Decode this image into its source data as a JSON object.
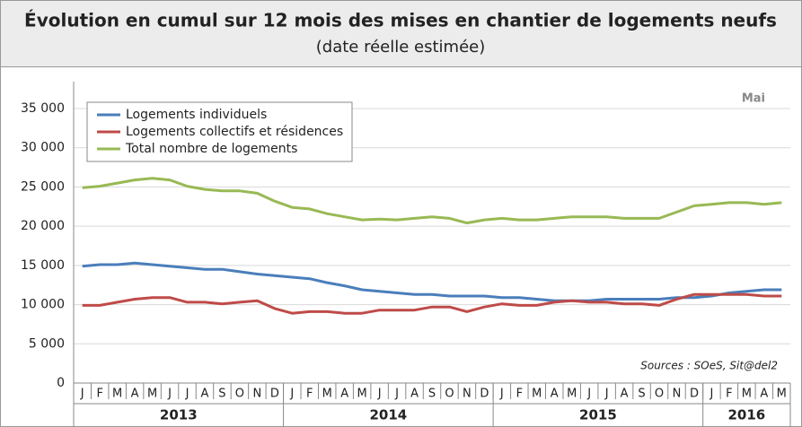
{
  "chart_data": {
    "type": "line",
    "title": "Évolution en cumul sur 12 mois des mises en chantier de logements neufs",
    "subtitle": "(date réelle estimée)",
    "annotations": [
      "Mai",
      "Sources : SOeS, Sit@del2"
    ],
    "years": [
      "2013",
      "2014",
      "2015",
      "2016"
    ],
    "categories": [
      "J",
      "F",
      "M",
      "A",
      "M",
      "J",
      "J",
      "A",
      "S",
      "O",
      "N",
      "D",
      "J",
      "F",
      "M",
      "A",
      "M",
      "J",
      "J",
      "A",
      "S",
      "O",
      "N",
      "D",
      "J",
      "F",
      "M",
      "A",
      "M",
      "J",
      "J",
      "A",
      "S",
      "O",
      "N",
      "D",
      "J",
      "F",
      "M",
      "A",
      "M"
    ],
    "series": [
      {
        "name": "Logements individuels",
        "color": "#4a7ebb",
        "values": [
          14900,
          15100,
          15100,
          15300,
          15100,
          14900,
          14700,
          14500,
          14500,
          14200,
          13900,
          13700,
          13500,
          13300,
          12800,
          12400,
          11900,
          11700,
          11500,
          11300,
          11300,
          11100,
          11100,
          11100,
          10900,
          10900,
          10700,
          10500,
          10500,
          10500,
          10700,
          10700,
          10700,
          10700,
          10900,
          10900,
          11100,
          11500,
          11700,
          11900,
          11900
        ]
      },
      {
        "name": "Logements collectifs et résidences",
        "color": "#be4b48",
        "values": [
          9900,
          9900,
          10300,
          10700,
          10900,
          10900,
          10300,
          10300,
          10100,
          10300,
          10500,
          9500,
          8900,
          9100,
          9100,
          8900,
          8900,
          9300,
          9300,
          9300,
          9700,
          9700,
          9100,
          9700,
          10100,
          9900,
          9900,
          10300,
          10500,
          10300,
          10300,
          10100,
          10100,
          9900,
          10700,
          11300,
          11300,
          11300,
          11300,
          11100,
          11100
        ]
      },
      {
        "name": "Total nombre de logements",
        "color": "#98b954",
        "values": [
          24900,
          25100,
          25500,
          25900,
          26100,
          25900,
          25100,
          24700,
          24500,
          24500,
          24200,
          23200,
          22400,
          22200,
          21600,
          21200,
          20800,
          20900,
          20800,
          21000,
          21200,
          21000,
          20400,
          20800,
          21000,
          20800,
          20800,
          21000,
          21200,
          21200,
          21200,
          21000,
          21000,
          21000,
          21800,
          22600,
          22800,
          23000,
          23000,
          22800,
          23000
        ]
      }
    ],
    "ylim": [
      0,
      35000
    ],
    "yticks": [
      0,
      {
        "value": 5000,
        "label": "5 000"
      },
      {
        "value": 10000,
        "label": "10 000"
      },
      {
        "value": 15000,
        "label": "15 000"
      },
      {
        "value": 20000,
        "label": "20 000"
      },
      {
        "value": 25000,
        "label": "25 000"
      },
      {
        "value": 30000,
        "label": "30 000"
      },
      {
        "value": 35000,
        "label": "35 000"
      }
    ],
    "grid": true,
    "legend": "top-left"
  }
}
